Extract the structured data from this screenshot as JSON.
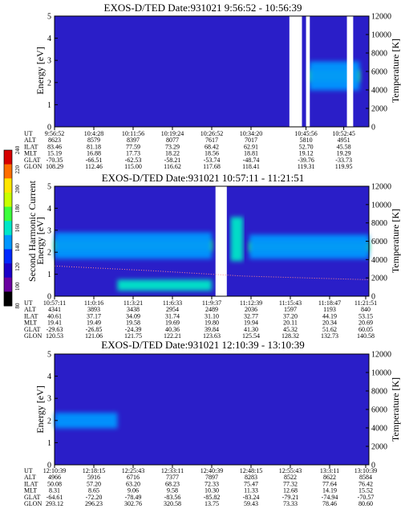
{
  "colorbar": {
    "label": "Second Harmonic Current",
    "ticks": [
      "80",
      "100",
      "120",
      "140",
      "160",
      "180",
      "200",
      "220",
      "240"
    ],
    "colors": [
      "#000000",
      "#6a00a0",
      "#1a00c8",
      "#0028ff",
      "#0096ff",
      "#00e6c8",
      "#3cff3c",
      "#c8ff00",
      "#ffe600",
      "#ff6e00",
      "#d70000"
    ]
  },
  "chart_data": [
    {
      "type": "heatmap",
      "title": "EXOS-D/TED   Date:931021   9:56:52 - 10:56:39",
      "ylabel": "Energy [eV]",
      "y2label": "Temperature [K]",
      "ylim": [
        0,
        5
      ],
      "y2lim": [
        0,
        12000
      ],
      "yticks": [
        "0",
        "1",
        "2",
        "3",
        "4",
        "5"
      ],
      "y2ticks": [
        "0",
        "2000",
        "4000",
        "6000",
        "8000",
        "10000",
        "12000"
      ],
      "gaps": [
        [
          0.747,
          0.787
        ],
        [
          0.8,
          0.812
        ],
        [
          0.93,
          0.95
        ]
      ],
      "bands": [
        {
          "x0": 0.81,
          "x1": 0.97,
          "yc": 2.3,
          "w": 0.55,
          "intensity": 0.8
        },
        {
          "x0": 0.81,
          "x1": 0.97,
          "yc": 2.3,
          "w": 1.3,
          "intensity": 0.45
        }
      ],
      "table": {
        "row_labels": [
          "UT",
          "ALT",
          "ILAT",
          "MLT",
          "GLAT",
          "GLON"
        ],
        "columns": [
          {
            "pos": 0.0,
            "values": [
              "9:56:52",
              "8623",
              "83.46",
              "15.19",
              "-70.35",
              "108.29"
            ]
          },
          {
            "pos": 0.125,
            "values": [
              "10:4:28",
              "8579",
              "81.18",
              "16.88",
              "-66.51",
              "112.46"
            ]
          },
          {
            "pos": 0.25,
            "values": [
              "10:11:56",
              "8397",
              "77.59",
              "17.73",
              "-62.53",
              "115.00"
            ]
          },
          {
            "pos": 0.375,
            "values": [
              "10:19:24",
              "8077",
              "73.29",
              "18.22",
              "-58.21",
              "116.62"
            ]
          },
          {
            "pos": 0.5,
            "values": [
              "10:26:52",
              "7617",
              "68.42",
              "18.56",
              "-53.74",
              "117.68"
            ]
          },
          {
            "pos": 0.625,
            "values": [
              "10:34:20",
              "7017",
              "62.91",
              "18.81",
              "-48.74",
              "118.41"
            ]
          },
          {
            "pos": 0.8,
            "values": [
              "10:45:56",
              "5810",
              "52.70",
              "19.12",
              "-39.76",
              "119.31"
            ]
          },
          {
            "pos": 0.92,
            "values": [
              "10:52:45",
              "4951",
              "45.58",
              "19.29",
              "-33.73",
              "119.95"
            ]
          }
        ]
      }
    },
    {
      "type": "heatmap",
      "title": "EXOS-D/TED   Date:931021   10:57:11 - 11:21:51",
      "ylabel": "Energy [eV]",
      "y2label": "Temperature [K]",
      "ylim": [
        0,
        5
      ],
      "y2lim": [
        0,
        12000
      ],
      "yticks": [
        "0",
        "1",
        "2",
        "3",
        "4",
        "5"
      ],
      "y2ticks": [
        "0",
        "2000",
        "4000",
        "6000",
        "8000",
        "10000",
        "12000"
      ],
      "gaps": [
        [
          0.512,
          0.548
        ]
      ],
      "bands": [
        {
          "x0": 0.0,
          "x1": 0.5,
          "yc": 2.3,
          "w": 0.5,
          "intensity": 0.72
        },
        {
          "x0": 0.0,
          "x1": 0.5,
          "yc": 2.3,
          "w": 1.2,
          "intensity": 0.45
        },
        {
          "x0": 0.62,
          "x1": 1.0,
          "yc": 2.25,
          "w": 0.45,
          "intensity": 0.72
        },
        {
          "x0": 0.62,
          "x1": 1.0,
          "yc": 2.25,
          "w": 1.1,
          "intensity": 0.45
        },
        {
          "x0": 0.2,
          "x1": 0.5,
          "yc": 0.5,
          "w": 0.5,
          "intensity": 0.5
        },
        {
          "x0": 0.56,
          "x1": 0.6,
          "yc": 2.6,
          "w": 2.0,
          "intensity": 0.55
        }
      ],
      "temperature_line": {
        "x": [
          0.0,
          0.3,
          0.6,
          1.0
        ],
        "y": [
          3300,
          2800,
          2200,
          1800
        ]
      },
      "table": {
        "row_labels": [
          "UT",
          "ALT",
          "ILAT",
          "MLT",
          "GLAT",
          "GLON"
        ],
        "columns": [
          {
            "pos": 0.0,
            "values": [
              "10:57:11",
              "4341",
              "40.61",
              "19.41",
              "-29.63",
              "120.53"
            ]
          },
          {
            "pos": 0.125,
            "values": [
              "11:0:16",
              "3893",
              "37.17",
              "19.49",
              "-26.85",
              "121.06"
            ]
          },
          {
            "pos": 0.25,
            "values": [
              "11:3:21",
              "3438",
              "34.09",
              "19.58",
              "-24.39",
              "121.75"
            ]
          },
          {
            "pos": 0.375,
            "values": [
              "11:6:33",
              "2954",
              "31.74",
              "19.69",
              "40.36",
              "122.21"
            ]
          },
          {
            "pos": 0.5,
            "values": [
              "11:9:37",
              "2489",
              "31.10",
              "19.80",
              "39.84",
              "123.63"
            ]
          },
          {
            "pos": 0.625,
            "values": [
              "11:12:39",
              "2036",
              "32.77",
              "19.94",
              "41.30",
              "125.54"
            ]
          },
          {
            "pos": 0.75,
            "values": [
              "11:15:43",
              "1597",
              "37.20",
              "20.11",
              "45.32",
              "128.32"
            ]
          },
          {
            "pos": 0.875,
            "values": [
              "11:18:47",
              "1193",
              "44.19",
              "20.34",
              "51.62",
              "132.73"
            ]
          },
          {
            "pos": 1.0,
            "values": [
              "11:21:51",
              "840",
              "53.15",
              "20.69",
              "60.05",
              "140.58"
            ]
          }
        ]
      }
    },
    {
      "type": "heatmap",
      "title": "EXOS-D/TED   Date:931021   12:10:39 - 13:10:39",
      "ylabel": "Energy [eV]",
      "y2label": "Temperature [K]",
      "ylim": [
        0,
        5
      ],
      "y2lim": [
        0,
        12000
      ],
      "yticks": [
        "0",
        "1",
        "2",
        "3",
        "4",
        "5"
      ],
      "y2ticks": [
        "0",
        "2000",
        "4000",
        "6000",
        "8000",
        "10000",
        "12000"
      ],
      "gaps": [],
      "bands": [
        {
          "x0": 0.0,
          "x1": 0.2,
          "yc": 2.0,
          "w": 0.7,
          "intensity": 0.45
        }
      ],
      "table": {
        "row_labels": [
          "UT",
          "ALT",
          "ILAT",
          "MLT",
          "GLAT",
          "GLON"
        ],
        "columns": [
          {
            "pos": 0.0,
            "values": [
              "12:10:39",
              "4966",
              "50.08",
              "8.31",
              "-64.61",
              "293.12"
            ]
          },
          {
            "pos": 0.125,
            "values": [
              "12:18:15",
              "5916",
              "57.20",
              "8.65",
              "-72.20",
              "296.23"
            ]
          },
          {
            "pos": 0.25,
            "values": [
              "12:25:43",
              "6716",
              "63.20",
              "9.06",
              "-78.49",
              "302.76"
            ]
          },
          {
            "pos": 0.375,
            "values": [
              "12:33:11",
              "7377",
              "68.23",
              "9.58",
              "-83.56",
              "320.58"
            ]
          },
          {
            "pos": 0.5,
            "values": [
              "12:40:39",
              "7897",
              "72.33",
              "10.30",
              "-85.82",
              "13.75"
            ]
          },
          {
            "pos": 0.625,
            "values": [
              "12:48:15",
              "8283",
              "75.47",
              "11.33",
              "-83.24",
              "59.43"
            ]
          },
          {
            "pos": 0.75,
            "values": [
              "12:55:43",
              "8522",
              "77.32",
              "12.68",
              "-79.21",
              "73.33"
            ]
          },
          {
            "pos": 0.875,
            "values": [
              "13:3:11",
              "8622",
              "77.64",
              "14.19",
              "-74.94",
              "78.46"
            ]
          },
          {
            "pos": 1.0,
            "values": [
              "13:10:39",
              "8584",
              "76.42",
              "15.52",
              "-70.57",
              "80.60"
            ]
          }
        ]
      }
    }
  ]
}
